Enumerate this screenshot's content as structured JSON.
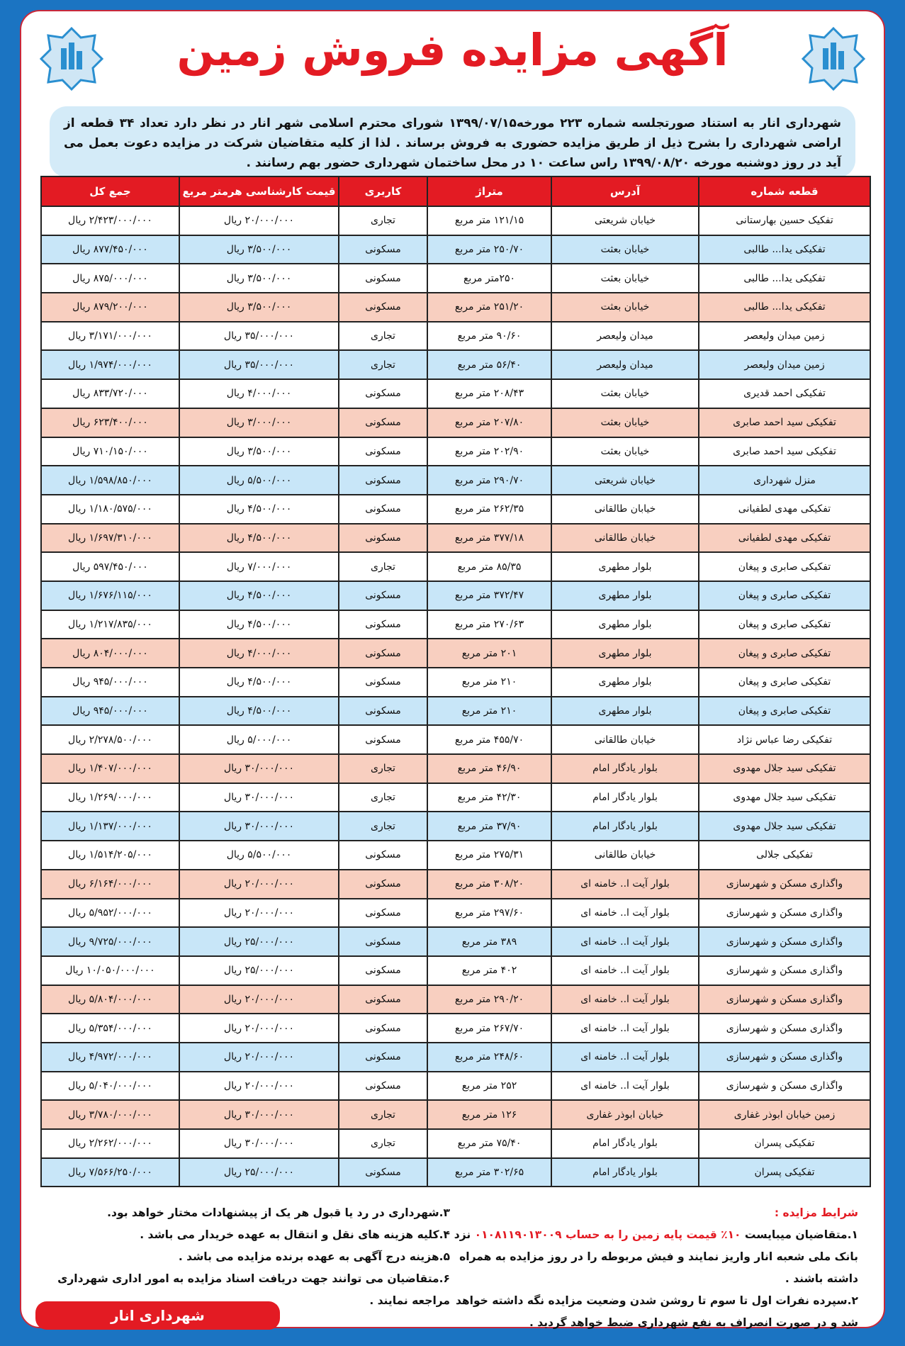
{
  "title": "آگهی مزایده فروش زمین",
  "intro": "شهرداری انار به استناد صورتجلسه شماره ۲۲۳ مورخه۱۳۹۹/۰۷/۱۵ شورای محترم اسلامی شهر انار در نظر دارد تعداد ۳۴ قطعه از اراضی شهرداری را بشرح ذیل از طریق مزایده حضوری به فروش برساند . لذا از کلیه متقاضیان شرکت در مزایده دعوت بعمل می آید در روز دوشنبه مورخه ۱۳۹۹/۰۸/۲۰ راس ساعت ۱۰ در محل ساختمان شهرداری حضور بهم رسانند .",
  "colors": {
    "accent": "#e31b23",
    "frame": "#1b74c2",
    "row_blue": "#c8e6f8",
    "row_pink": "#f8cfc0"
  },
  "table": {
    "headers": [
      "قطعه شماره",
      "آدرس",
      "متراژ",
      "کاربری",
      "قیمت کارشناسی هرمتر مربع",
      "جمع کل"
    ],
    "rows": [
      [
        "تفکیک حسین بهارستانی",
        "خیابان شریعتی",
        "۱۲۱/۱۵ متر مربع",
        "تجاری",
        "۲۰/۰۰۰/۰۰۰ ریال",
        "۲/۴۲۳/۰۰۰/۰۰۰ ریال",
        "white"
      ],
      [
        "تفکیکی یدا... طالبی",
        "خیابان بعثت",
        "۲۵۰/۷۰ متر مربع",
        "مسکونی",
        "۳/۵۰۰/۰۰۰ ریال",
        "۸۷۷/۴۵۰/۰۰۰ ریال",
        "blue"
      ],
      [
        "تفکیکی یدا... طالبی",
        "خیابان بعثت",
        "۲۵۰متر مربع",
        "مسکونی",
        "۳/۵۰۰/۰۰۰ ریال",
        "۸۷۵/۰۰۰/۰۰۰ ریال",
        "white"
      ],
      [
        "تفکیکی یدا... طالبی",
        "خیابان بعثت",
        "۲۵۱/۲۰ متر مربع",
        "مسکونی",
        "۳/۵۰۰/۰۰۰ ریال",
        "۸۷۹/۲۰۰/۰۰۰ ریال",
        "pink"
      ],
      [
        "زمین میدان ولیعصر",
        "میدان ولیعصر",
        "۹۰/۶۰ متر مربع",
        "تجاری",
        "۳۵/۰۰۰/۰۰۰ ریال",
        "۳/۱۷۱/۰۰۰/۰۰۰ ریال",
        "white"
      ],
      [
        "زمین میدان ولیعصر",
        "میدان ولیعصر",
        "۵۶/۴۰ متر مربع",
        "تجاری",
        "۳۵/۰۰۰/۰۰۰ ریال",
        "۱/۹۷۴/۰۰۰/۰۰۰ ریال",
        "blue"
      ],
      [
        "تفکیکی احمد قدیری",
        "خیابان بعثت",
        "۲۰۸/۴۳ متر مربع",
        "مسکونی",
        "۴/۰۰۰/۰۰۰ ریال",
        "۸۳۳/۷۲۰/۰۰۰ ریال",
        "white"
      ],
      [
        "تفکیکی سید احمد صابری",
        "خیابان بعثت",
        "۲۰۷/۸۰ متر مربع",
        "مسکونی",
        "۳/۰۰۰/۰۰۰ ریال",
        "۶۲۳/۴۰۰/۰۰۰ ریال",
        "pink"
      ],
      [
        "تفکیکی سید احمد صابری",
        "خیابان بعثت",
        "۲۰۲/۹۰ متر مربع",
        "مسکونی",
        "۳/۵۰۰/۰۰۰ ریال",
        "۷۱۰/۱۵۰/۰۰۰ ریال",
        "white"
      ],
      [
        "منزل شهرداری",
        "خیابان شریعتی",
        "۲۹۰/۷۰ متر مربع",
        "مسکونی",
        "۵/۵۰۰/۰۰۰ ریال",
        "۱/۵۹۸/۸۵۰/۰۰۰ ریال",
        "blue"
      ],
      [
        "تفکیکی مهدی لطفیانی",
        "خیابان طالقانی",
        "۲۶۲/۳۵ متر مربع",
        "مسکونی",
        "۴/۵۰۰/۰۰۰ ریال",
        "۱/۱۸۰/۵۷۵/۰۰۰ ریال",
        "white"
      ],
      [
        "تفکیکی مهدی لطفیانی",
        "خیابان طالقانی",
        "۳۷۷/۱۸ متر مربع",
        "مسکونی",
        "۴/۵۰۰/۰۰۰ ریال",
        "۱/۶۹۷/۳۱۰/۰۰۰ ریال",
        "pink"
      ],
      [
        "تفکیکی صابری و پیغان",
        "بلوار مطهری",
        "۸۵/۳۵ متر مربع",
        "تجاری",
        "۷/۰۰۰/۰۰۰ ریال",
        "۵۹۷/۴۵۰/۰۰۰ ریال",
        "white"
      ],
      [
        "تفکیکی صابری و پیغان",
        "بلوار مطهری",
        "۳۷۲/۴۷ متر مربع",
        "مسکونی",
        "۴/۵۰۰/۰۰۰ ریال",
        "۱/۶۷۶/۱۱۵/۰۰۰ ریال",
        "blue"
      ],
      [
        "تفکیکی صابری و پیغان",
        "بلوار مطهری",
        "۲۷۰/۶۳ متر مربع",
        "مسکونی",
        "۴/۵۰۰/۰۰۰ ریال",
        "۱/۲۱۷/۸۳۵/۰۰۰ ریال",
        "white"
      ],
      [
        "تفکیکی صابری و پیغان",
        "بلوار مطهری",
        "۲۰۱ متر مربع",
        "مسکونی",
        "۴/۰۰۰/۰۰۰ ریال",
        "۸۰۴/۰۰۰/۰۰۰ ریال",
        "pink"
      ],
      [
        "تفکیکی صابری و پیغان",
        "بلوار مطهری",
        "۲۱۰ متر مربع",
        "مسکونی",
        "۴/۵۰۰/۰۰۰ ریال",
        "۹۴۵/۰۰۰/۰۰۰ ریال",
        "white"
      ],
      [
        "تفکیکی صابری و پیغان",
        "بلوار مطهری",
        "۲۱۰ متر مربع",
        "مسکونی",
        "۴/۵۰۰/۰۰۰ ریال",
        "۹۴۵/۰۰۰/۰۰۰ ریال",
        "blue"
      ],
      [
        "تفکیکی رضا عباس نژاد",
        "خیابان طالقانی",
        "۴۵۵/۷۰ متر مربع",
        "مسکونی",
        "۵/۰۰۰/۰۰۰ ریال",
        "۲/۲۷۸/۵۰۰/۰۰۰ ریال",
        "white"
      ],
      [
        "تفکیکی سید جلال مهدوی",
        "بلوار یادگار امام",
        "۴۶/۹۰ متر مربع",
        "تجاری",
        "۳۰/۰۰۰/۰۰۰ ریال",
        "۱/۴۰۷/۰۰۰/۰۰۰ ریال",
        "pink"
      ],
      [
        "تفکیکی سید جلال مهدوی",
        "بلوار یادگار امام",
        "۴۲/۳۰ متر مربع",
        "تجاری",
        "۳۰/۰۰۰/۰۰۰ ریال",
        "۱/۲۶۹/۰۰۰/۰۰۰ ریال",
        "white"
      ],
      [
        "تفکیکی سید جلال مهدوی",
        "بلوار یادگار امام",
        "۳۷/۹۰ متر مربع",
        "تجاری",
        "۳۰/۰۰۰/۰۰۰ ریال",
        "۱/۱۳۷/۰۰۰/۰۰۰ ریال",
        "blue"
      ],
      [
        "تفکیکی جلالی",
        "خیابان طالقانی",
        "۲۷۵/۳۱ متر مربع",
        "مسکونی",
        "۵/۵۰۰/۰۰۰ ریال",
        "۱/۵۱۴/۲۰۵/۰۰۰ ریال",
        "white"
      ],
      [
        "واگذاری مسکن و شهرسازی",
        "بلوار آیت ا.. خامنه ای",
        "۳۰۸/۲۰ متر مربع",
        "مسکونی",
        "۲۰/۰۰۰/۰۰۰ ریال",
        "۶/۱۶۴/۰۰۰/۰۰۰ ریال",
        "pink"
      ],
      [
        "واگذاری مسکن و شهرسازی",
        "بلوار آیت ا.. خامنه ای",
        "۲۹۷/۶۰ متر مربع",
        "مسکونی",
        "۲۰/۰۰۰/۰۰۰ ریال",
        "۵/۹۵۲/۰۰۰/۰۰۰ ریال",
        "white"
      ],
      [
        "واگذاری مسکن و شهرسازی",
        "بلوار آیت ا.. خامنه ای",
        "۳۸۹ متر مربع",
        "مسکونی",
        "۲۵/۰۰۰/۰۰۰ ریال",
        "۹/۷۲۵/۰۰۰/۰۰۰ ریال",
        "blue"
      ],
      [
        "واگذاری مسکن و شهرسازی",
        "بلوار آیت ا.. خامنه ای",
        "۴۰۲ متر مربع",
        "مسکونی",
        "۲۵/۰۰۰/۰۰۰ ریال",
        "۱۰/۰۵۰/۰۰۰/۰۰۰ ریال",
        "white"
      ],
      [
        "واگذاری مسکن و شهرسازی",
        "بلوار آیت ا.. خامنه ای",
        "۲۹۰/۲۰ متر مربع",
        "مسکونی",
        "۲۰/۰۰۰/۰۰۰ ریال",
        "۵/۸۰۴/۰۰۰/۰۰۰ ریال",
        "pink"
      ],
      [
        "واگذاری مسکن و شهرسازی",
        "بلوار آیت ا.. خامنه ای",
        "۲۶۷/۷۰ متر مربع",
        "مسکونی",
        "۲۰/۰۰۰/۰۰۰ ریال",
        "۵/۳۵۴/۰۰۰/۰۰۰ ریال",
        "white"
      ],
      [
        "واگذاری مسکن و شهرسازی",
        "بلوار آیت ا.. خامنه ای",
        "۲۴۸/۶۰ متر مربع",
        "مسکونی",
        "۲۰/۰۰۰/۰۰۰ ریال",
        "۴/۹۷۲/۰۰۰/۰۰۰ ریال",
        "blue"
      ],
      [
        "واگذاری مسکن و شهرسازی",
        "بلوار آیت ا.. خامنه ای",
        "۲۵۲ متر مربع",
        "مسکونی",
        "۲۰/۰۰۰/۰۰۰ ریال",
        "۵/۰۴۰/۰۰۰/۰۰۰ ریال",
        "white"
      ],
      [
        "زمین خیابان ابوذر غفاری",
        "خیابان ابوذر غفاری",
        "۱۲۶ متر مربع",
        "تجاری",
        "۳۰/۰۰۰/۰۰۰ ریال",
        "۳/۷۸۰/۰۰۰/۰۰۰ ریال",
        "pink"
      ],
      [
        "تفکیکی پسران",
        "بلوار یادگار امام",
        "۷۵/۴۰ متر مربع",
        "تجاری",
        "۳۰/۰۰۰/۰۰۰ ریال",
        "۲/۲۶۲/۰۰۰/۰۰۰ ریال",
        "white"
      ],
      [
        "تفکیکی پسران",
        "بلوار یادگار امام",
        "۳۰۲/۶۵ متر مربع",
        "مسکونی",
        "۲۵/۰۰۰/۰۰۰ ریال",
        "۷/۵۶۶/۲۵۰/۰۰۰ ریال",
        "blue"
      ]
    ]
  },
  "conditions": {
    "title": "شرایط مزایده :",
    "c1_a": "۱.متقاضیان میبایست ",
    "c1_red": "۱۰٪ قیمت پایه زمین را به حساب ۰۱۰۸۱۱۹۰۱۳۰۰۹",
    "c1_b": " نزد بانک ملی شعبه انار واریز نمایند و فیش مربوطه را در روز مزایده به همراه داشته باشند .",
    "c2": "۲.سپرده نفرات اول تا سوم تا روشن شدن وضعیت مزایده نگه داشته خواهد شد و در صورت انصراف به نفع شهرداری ضبط خواهد گردید .",
    "c3": "۳.شهرداری در رد یا قبول هر یک از پیشنهادات مختار خواهد بود.",
    "c4": "۴.کلیه هزینه های نقل و انتقال به عهده خریدار می باشد .",
    "c5": "۵.هزینه درج آگهی به عهده برنده مزایده می باشد .",
    "c6": "۶.متقاضیان می توانند جهت دریافت اسناد مزایده به امور اداری شهرداری مراجعه نمایند ."
  },
  "signature": "شهرداری انار"
}
